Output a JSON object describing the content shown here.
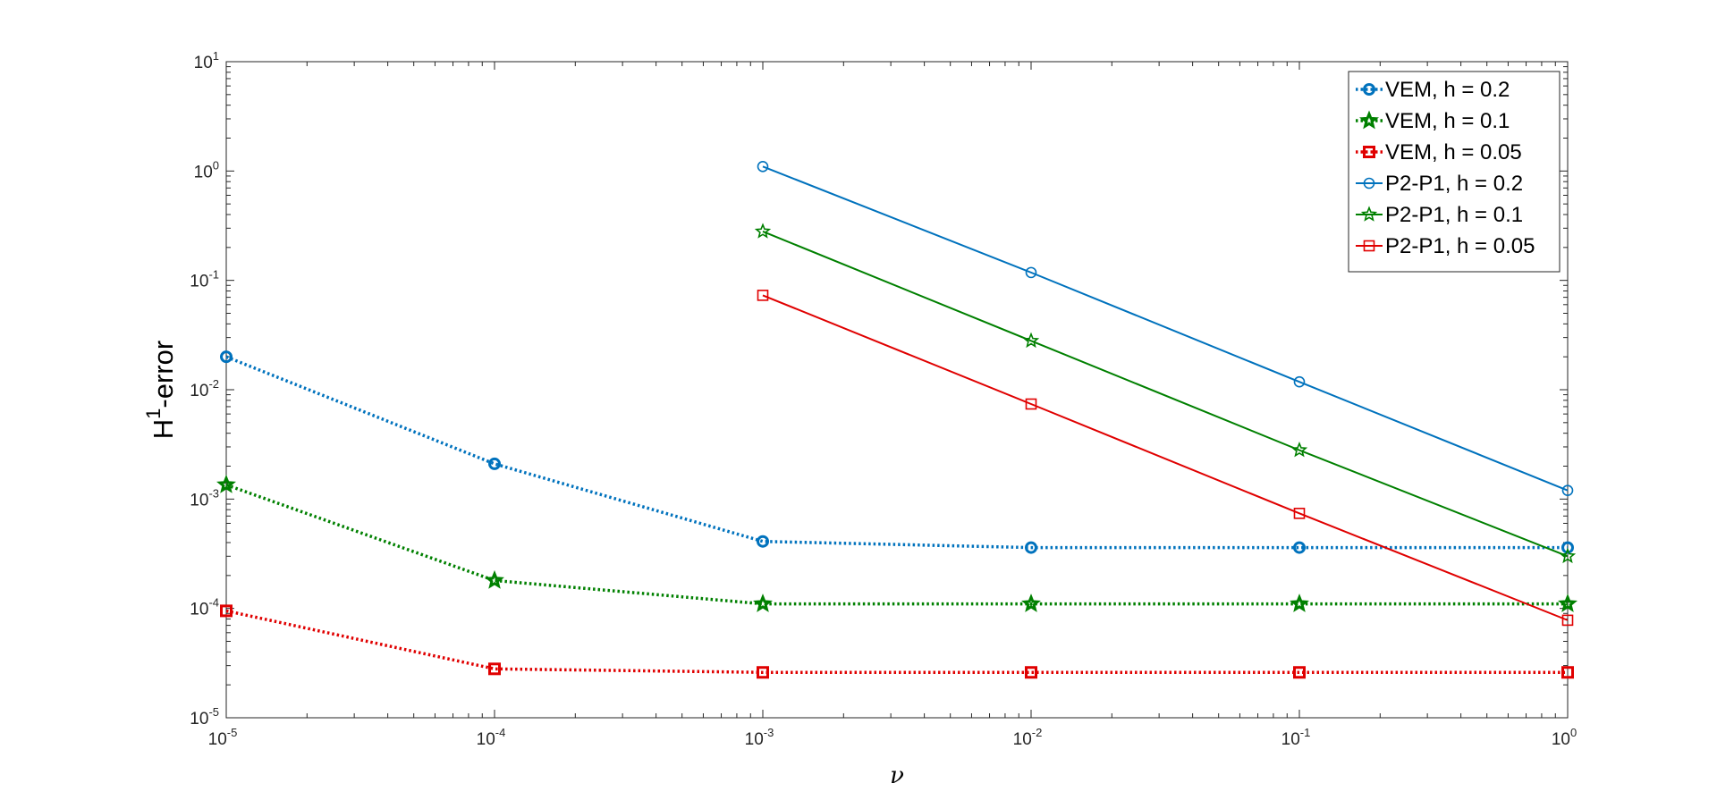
{
  "chart_data": {
    "type": "line",
    "title": "",
    "xlabel": "ν",
    "ylabel_base": "H",
    "ylabel_sup": "1",
    "ylabel_rest": "-error",
    "x_scale": "log",
    "y_scale": "log",
    "xlim": [
      1e-05,
      1
    ],
    "ylim": [
      1e-05,
      10
    ],
    "x_ticks": [
      {
        "base": "10",
        "exp": "-5",
        "value": 1e-05
      },
      {
        "base": "10",
        "exp": "-4",
        "value": 0.0001
      },
      {
        "base": "10",
        "exp": "-3",
        "value": 0.001
      },
      {
        "base": "10",
        "exp": "-2",
        "value": 0.01
      },
      {
        "base": "10",
        "exp": "-1",
        "value": 0.1
      },
      {
        "base": "10",
        "exp": "0",
        "value": 1
      }
    ],
    "y_ticks": [
      {
        "base": "10",
        "exp": "-5",
        "value": 1e-05
      },
      {
        "base": "10",
        "exp": "-4",
        "value": 0.0001
      },
      {
        "base": "10",
        "exp": "-3",
        "value": 0.001
      },
      {
        "base": "10",
        "exp": "-2",
        "value": 0.01
      },
      {
        "base": "10",
        "exp": "-1",
        "value": 0.1
      },
      {
        "base": "10",
        "exp": "0",
        "value": 1
      },
      {
        "base": "10",
        "exp": "1",
        "value": 10
      }
    ],
    "grid": false,
    "legend_position": "top-right",
    "series": [
      {
        "name": "VEM, h = 0.2",
        "color": "#0072BD",
        "style": "dotted",
        "marker": "circle",
        "x": [
          1e-05,
          0.0001,
          0.001,
          0.01,
          0.1,
          1
        ],
        "y": [
          0.02,
          0.0021,
          0.00041,
          0.00036,
          0.00036,
          0.00036
        ]
      },
      {
        "name": "VEM, h = 0.1",
        "color": "#008000",
        "style": "dotted",
        "marker": "star",
        "x": [
          1e-05,
          0.0001,
          0.001,
          0.01,
          0.1,
          1
        ],
        "y": [
          0.00135,
          0.00018,
          0.00011,
          0.00011,
          0.00011,
          0.00011
        ]
      },
      {
        "name": "VEM, h = 0.05",
        "color": "#E00000",
        "style": "dotted",
        "marker": "square",
        "x": [
          1e-05,
          0.0001,
          0.001,
          0.01,
          0.1,
          1
        ],
        "y": [
          9.5e-05,
          2.8e-05,
          2.6e-05,
          2.6e-05,
          2.6e-05,
          2.6e-05
        ]
      },
      {
        "name": "P2-P1, h = 0.2",
        "color": "#0072BD",
        "style": "solid",
        "marker": "circle",
        "x": [
          0.001,
          0.01,
          0.1,
          1
        ],
        "y": [
          1.1,
          0.118,
          0.0118,
          0.0012
        ]
      },
      {
        "name": "P2-P1, h = 0.1",
        "color": "#008000",
        "style": "solid",
        "marker": "star",
        "x": [
          0.001,
          0.01,
          0.1,
          1
        ],
        "y": [
          0.28,
          0.028,
          0.0028,
          0.0003
        ]
      },
      {
        "name": "P2-P1, h = 0.05",
        "color": "#E00000",
        "style": "solid",
        "marker": "square",
        "x": [
          0.001,
          0.01,
          0.1,
          1
        ],
        "y": [
          0.073,
          0.0074,
          0.00074,
          7.8e-05
        ]
      }
    ]
  }
}
